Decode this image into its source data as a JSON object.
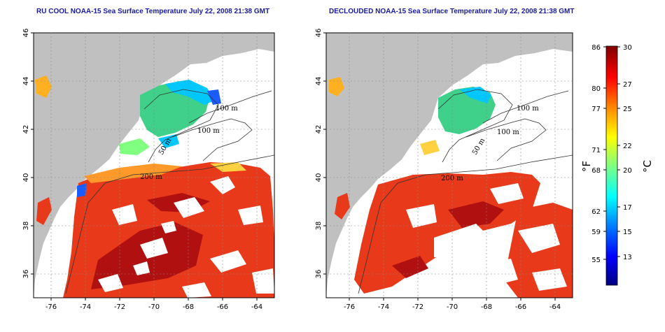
{
  "panels": [
    {
      "id": "left",
      "title": "RU COOL NOAA-15 Sea Surface Temperature July 22, 2008 21:38 GMT",
      "clouds": "dense"
    },
    {
      "id": "right",
      "title": "DECLOUDED NOAA-15 Sea Surface Temperature July 22, 2008 21:38 GMT",
      "clouds": "sparse"
    }
  ],
  "axes": {
    "lat_ticks": [
      "36",
      "38",
      "40",
      "42",
      "44",
      "46"
    ],
    "lon_ticks": [
      "-76",
      "-74",
      "-72",
      "-70",
      "-68",
      "-66",
      "-64"
    ],
    "lat_range": [
      35,
      46
    ],
    "lon_range": [
      -77,
      -63
    ]
  },
  "isobaths": [
    "100 m",
    "100 m",
    "50 m",
    "200 m",
    "200 m"
  ],
  "colorbar": {
    "unit_f": "°F",
    "unit_c": "°C",
    "f_ticks": [
      "86",
      "80",
      "77",
      "71",
      "68",
      "62",
      "59",
      "55"
    ],
    "c_ticks": [
      "30",
      "27",
      "25",
      "22",
      "20",
      "17",
      "15",
      "13"
    ],
    "colors": [
      "#000080",
      "#0000ff",
      "#0080ff",
      "#00ffff",
      "#80ff80",
      "#ffff00",
      "#ff8000",
      "#ff0000",
      "#800000"
    ]
  },
  "colors": {
    "land": "#c0c0c0",
    "warm": "#e83a1a",
    "hot": "#b01010",
    "cool": "#3fd08a",
    "cold": "#1a5cff",
    "title": "#1a1aa0"
  }
}
